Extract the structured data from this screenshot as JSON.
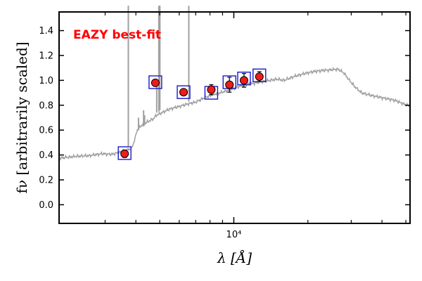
{
  "chart_data": {
    "type": "scatter",
    "title": "",
    "annotation": {
      "text": "EAZY best-fit",
      "color": "#ff0000"
    },
    "xlabel": "λ [Å]",
    "ylabel": "fν [arbitrarily scaled]",
    "xscale": "log",
    "xlim": [
      1950,
      52000
    ],
    "ylim": [
      -0.15,
      1.55
    ],
    "yticks": [
      0.0,
      0.2,
      0.4,
      0.6,
      0.8,
      1.0,
      1.2,
      1.4
    ],
    "ytick_labels": [
      "0.0",
      "0.2",
      "0.4",
      "0.6",
      "0.8",
      "1.0",
      "1.2",
      "1.4"
    ],
    "xticks_major": [
      10000
    ],
    "xtick_major_labels": [
      "10⁴"
    ],
    "xticks_minor": [
      3000,
      4000,
      5000,
      6000,
      7000,
      8000,
      9000,
      20000,
      30000,
      40000,
      50000
    ],
    "grid": false,
    "colors": {
      "model": "#a0a0a0",
      "observed_fill": "#ee1c1c",
      "observed_edge": "#000000",
      "model_box": "#1a1acc",
      "annotation": "#ff0000"
    },
    "series": [
      {
        "kind": "observed photometry",
        "x": [
          3600,
          4800,
          6250,
          8100,
          9600,
          11000,
          12700
        ],
        "y": [
          0.41,
          0.98,
          0.905,
          0.925,
          0.965,
          1.0,
          1.03
        ],
        "yerr": [
          0.03,
          0.02,
          0.025,
          0.04,
          0.06,
          0.055,
          0.04
        ]
      },
      {
        "kind": "model band fluxes",
        "x": [
          3600,
          4800,
          6250,
          8100,
          9600,
          11000,
          12700
        ],
        "y": [
          0.415,
          0.985,
          0.905,
          0.9,
          0.985,
          1.015,
          1.04
        ]
      },
      {
        "kind": "best-fit template spectrum",
        "x": [
          1950,
          2300,
          2600,
          2900,
          3200,
          3500,
          3700,
          3850,
          3950,
          4050,
          4250,
          4500,
          4700,
          4850,
          5100,
          5500,
          6000,
          6500,
          7000,
          7600,
          8200,
          9000,
          9800,
          10500,
          11300,
          12000,
          13000,
          14000,
          15000,
          16000,
          17500,
          19000,
          21000,
          23000,
          25000,
          26500,
          28000,
          29500,
          31000,
          33000,
          36000,
          40000,
          45000,
          52000
        ],
        "y": [
          0.375,
          0.39,
          0.395,
          0.41,
          0.405,
          0.425,
          0.44,
          0.455,
          0.52,
          0.6,
          0.645,
          0.67,
          0.69,
          0.72,
          0.74,
          0.77,
          0.79,
          0.81,
          0.825,
          0.86,
          0.885,
          0.905,
          0.93,
          0.95,
          0.97,
          0.975,
          0.99,
          1.0,
          1.01,
          1.0,
          1.03,
          1.05,
          1.07,
          1.08,
          1.085,
          1.09,
          1.06,
          1.0,
          0.95,
          0.9,
          0.88,
          0.86,
          0.84,
          0.79
        ]
      }
    ]
  }
}
